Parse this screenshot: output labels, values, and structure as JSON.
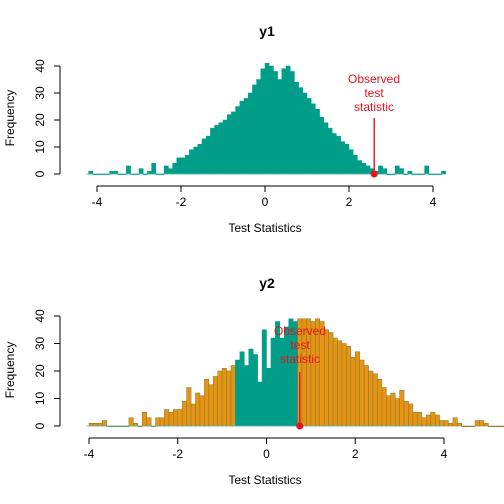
{
  "chart_data": [
    {
      "type": "histogram",
      "title": "y1",
      "xlabel": "Test Statistics",
      "ylabel": "Frequency",
      "xlim": [
        -4.2,
        4.2
      ],
      "ylim": [
        0,
        40
      ],
      "xticks": [
        "-4",
        "-2",
        "0",
        "2",
        "4"
      ],
      "yticks": [
        "0",
        "10",
        "20",
        "30",
        "40"
      ],
      "bin_width": 0.1,
      "bins_start": -4.2,
      "counts": [
        1,
        0,
        0,
        0,
        0,
        1,
        1,
        0,
        0,
        3,
        0,
        0,
        2,
        0,
        1,
        4,
        0,
        0,
        3,
        2,
        4,
        6,
        6,
        7,
        9,
        10,
        11,
        13,
        14,
        17,
        18,
        19,
        20,
        22,
        23,
        25,
        27,
        28,
        30,
        33,
        35,
        39,
        41,
        40,
        38,
        35,
        39,
        40,
        38,
        34,
        32,
        30,
        28,
        26,
        24,
        21,
        19,
        17,
        15,
        14,
        12,
        11,
        9,
        7,
        5,
        4,
        3,
        2,
        1,
        3,
        2,
        0,
        0,
        3,
        2,
        0,
        1,
        0,
        0,
        0,
        3,
        0,
        0,
        0,
        1
      ],
      "bar_color": "#009E88",
      "bar_border": "#009E88",
      "observed": {
        "value": 2.6,
        "label": "Observed test statistic",
        "color": "#E8121A"
      }
    },
    {
      "type": "histogram",
      "title": "y2",
      "xlabel": "Test Statistics",
      "ylabel": "Frequency",
      "xlim": [
        -4,
        4
      ],
      "ylim": [
        0,
        40
      ],
      "xticks": [
        "-4",
        "-2",
        "0",
        "2",
        "4"
      ],
      "yticks": [
        "0",
        "10",
        "20",
        "30",
        "40"
      ],
      "bin_width": 0.1,
      "bins_start": -4.0,
      "counts": [
        1,
        1,
        1,
        2,
        0,
        0,
        0,
        0,
        0,
        3,
        1,
        0,
        5,
        3,
        0,
        3,
        3,
        6,
        5,
        6,
        6,
        9,
        14,
        8,
        12,
        11,
        17,
        15,
        18,
        20,
        21,
        20,
        22,
        24,
        27,
        22,
        28,
        26,
        16,
        35,
        21,
        32,
        38,
        32,
        36,
        39,
        38,
        39,
        39,
        39,
        38,
        39,
        38,
        35,
        34,
        32,
        31,
        30,
        29,
        25,
        27,
        24,
        22,
        20,
        19,
        17,
        14,
        11,
        12,
        10,
        13,
        9,
        8,
        5,
        5,
        3,
        4,
        5,
        4,
        2,
        2,
        1,
        3,
        1,
        0,
        0,
        0,
        2,
        2,
        1,
        0,
        0,
        0,
        0,
        2
      ],
      "bar_color": "#E89413",
      "bar_border": "#7A7A3A",
      "shade_color": "#009E88",
      "shade_range": [
        -0.7,
        0.7
      ],
      "observed": {
        "value": 0.75,
        "label": "Observed test statistic",
        "color": "#E8121A"
      }
    }
  ],
  "labels": {
    "panel1_title": "y1",
    "panel2_title": "y2",
    "xlabel": "Test Statistics",
    "ylabel": "Frequency",
    "annot_line1": "Observed",
    "annot_line2": "test",
    "annot_line3": "statistic"
  }
}
